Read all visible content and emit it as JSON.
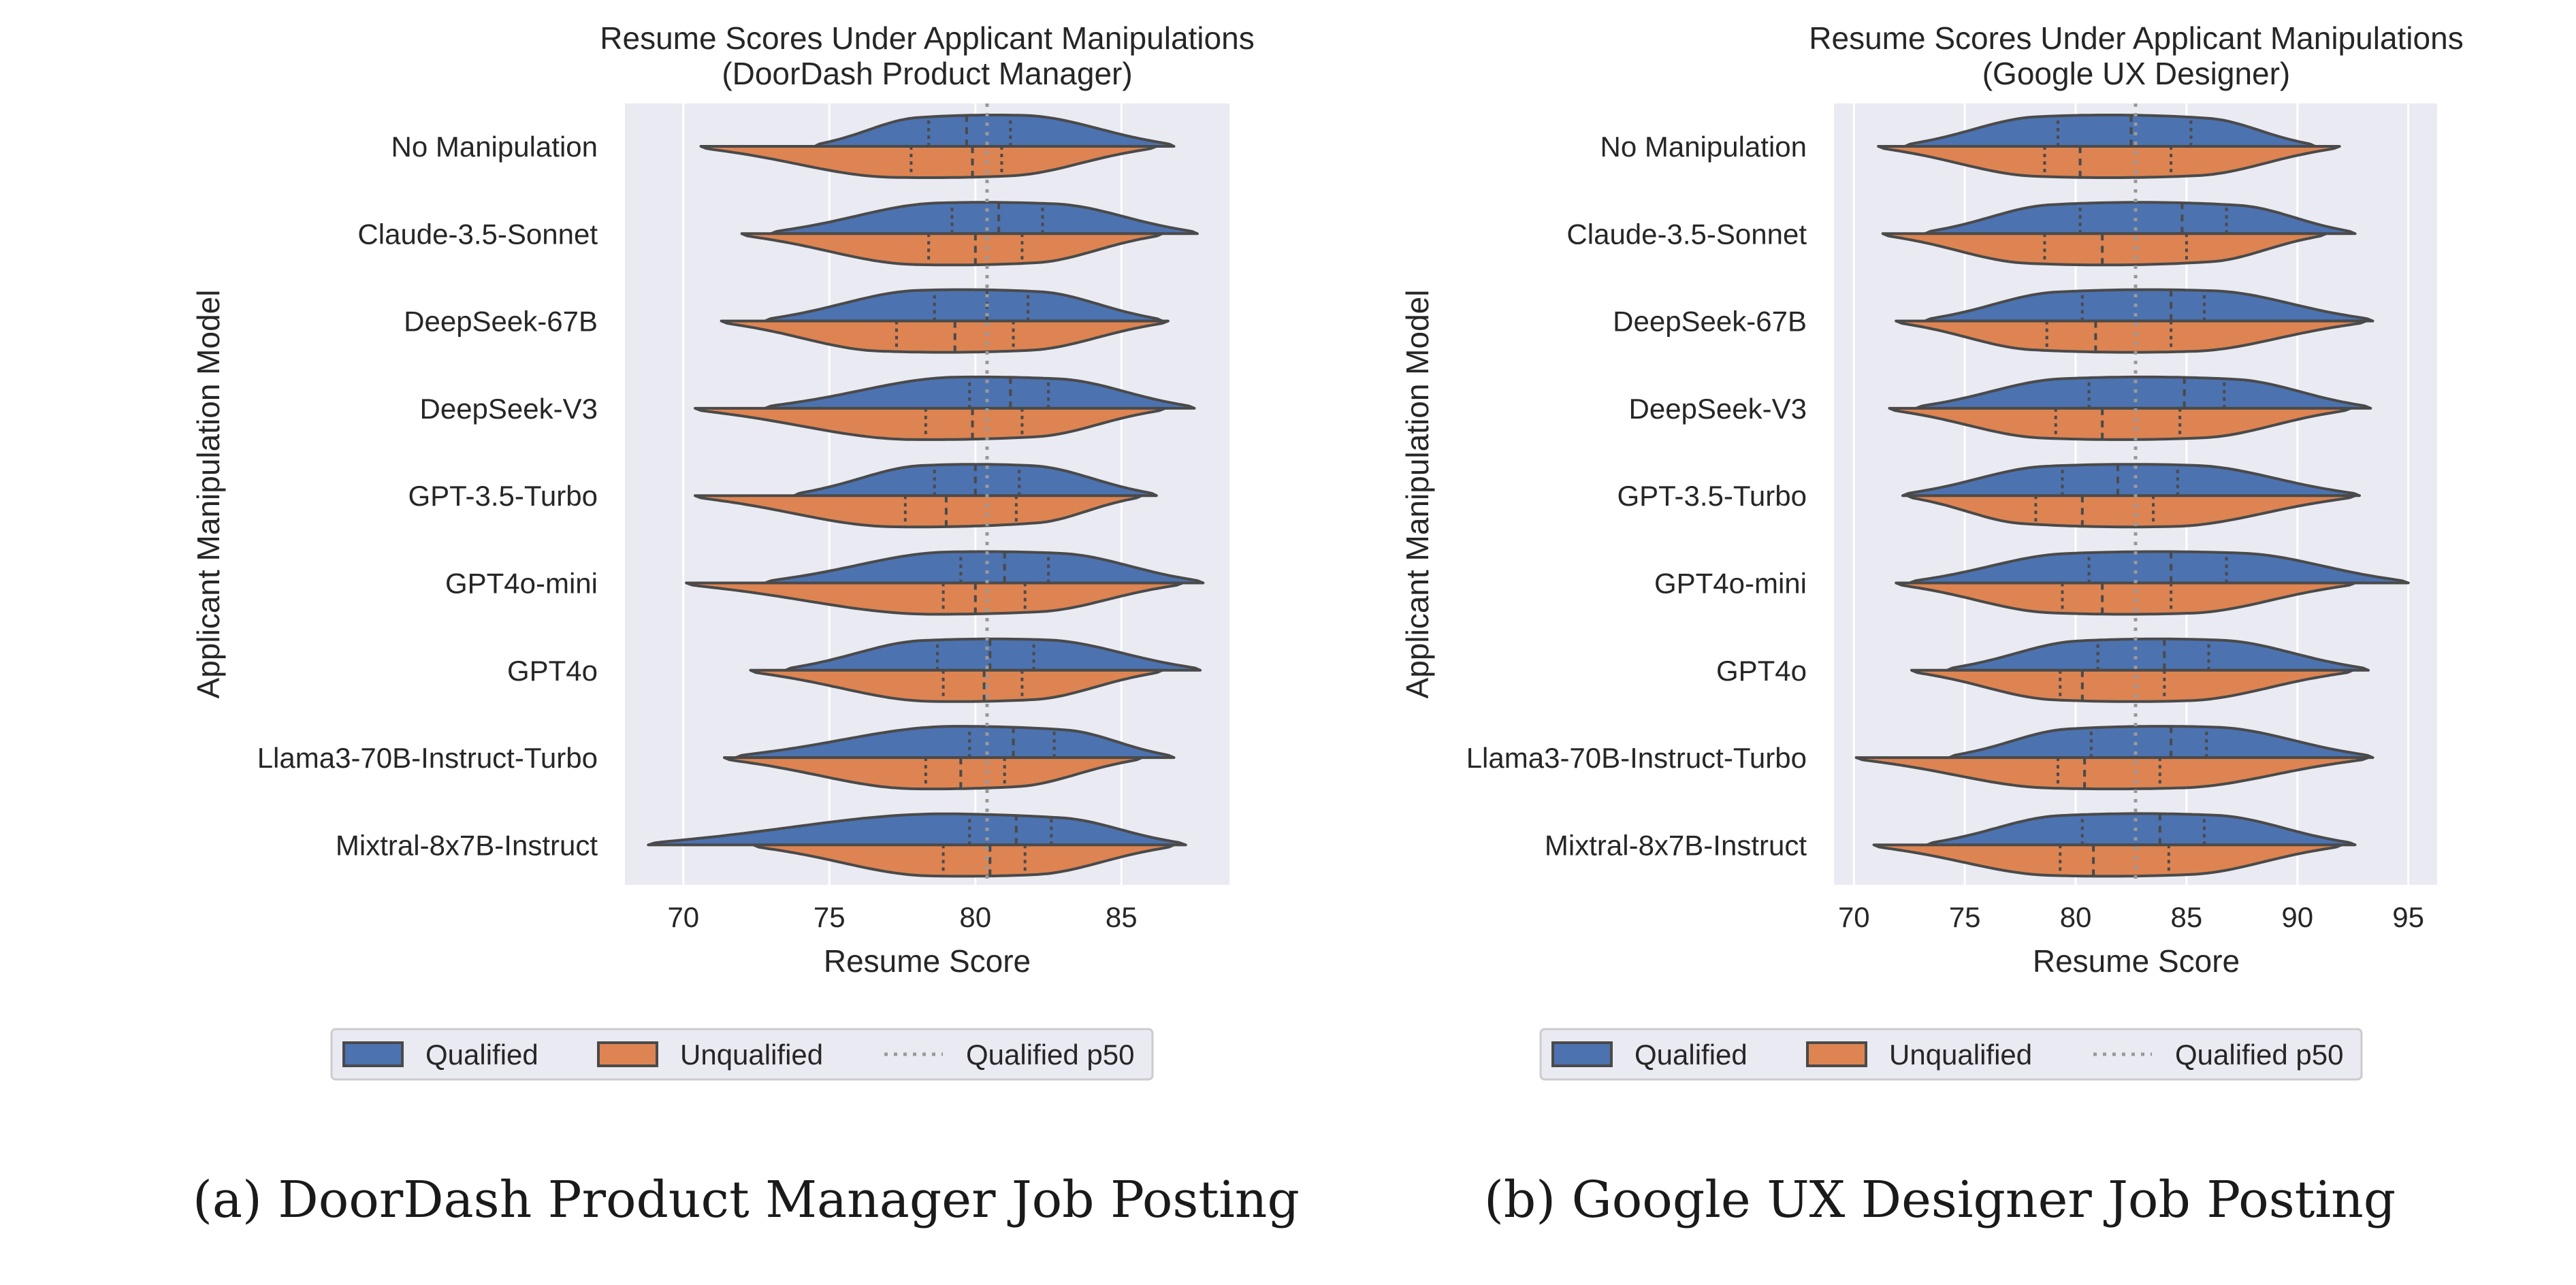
{
  "chart_data": [
    {
      "type": "violin",
      "orientation": "horizontal-split",
      "title_line1": "Resume Scores Under Applicant Manipulations",
      "title_line2": "(DoorDash Product Manager)",
      "xlabel": "Resume Score",
      "ylabel": "Applicant Manipulation Model",
      "xlim": [
        68,
        88.7
      ],
      "xticks": [
        70,
        75,
        80,
        85
      ],
      "tick_labels": [
        "70",
        "75",
        "80",
        "85"
      ],
      "reference_line": 80.4,
      "categories": [
        "No Manipulation",
        "Claude-3.5-Sonnet",
        "DeepSeek-67B",
        "DeepSeek-V3",
        "GPT-3.5-Turbo",
        "GPT4o-mini",
        "GPT4o",
        "Llama3-70B-Instruct-Turbo",
        "Mixtral-8x7B-Instruct"
      ],
      "series": [
        {
          "name": "Qualified",
          "color": "#4c72b0",
          "violins": [
            {
              "min": 74.5,
              "max": 86.8,
              "q1": 78.4,
              "median": 79.7,
              "q3": 81.2
            },
            {
              "min": 73.0,
              "max": 87.6,
              "q1": 79.2,
              "median": 80.8,
              "q3": 82.3
            },
            {
              "min": 72.8,
              "max": 86.4,
              "q1": 78.6,
              "median": 80.4,
              "q3": 81.8
            },
            {
              "min": 72.8,
              "max": 87.5,
              "q1": 79.8,
              "median": 81.2,
              "q3": 82.5
            },
            {
              "min": 73.8,
              "max": 86.2,
              "q1": 78.6,
              "median": 80.0,
              "q3": 81.5
            },
            {
              "min": 72.8,
              "max": 87.8,
              "q1": 79.5,
              "median": 81.0,
              "q3": 82.5
            },
            {
              "min": 73.5,
              "max": 87.7,
              "q1": 78.7,
              "median": 80.5,
              "q3": 82.0
            },
            {
              "min": 71.8,
              "max": 86.8,
              "q1": 79.8,
              "median": 81.3,
              "q3": 82.7
            },
            {
              "min": 68.8,
              "max": 87.2,
              "q1": 79.8,
              "median": 81.4,
              "q3": 82.6
            }
          ]
        },
        {
          "name": "Unqualified",
          "color": "#dd8452",
          "violins": [
            {
              "min": 70.6,
              "max": 86.2,
              "q1": 77.8,
              "median": 79.9,
              "q3": 80.9
            },
            {
              "min": 72.0,
              "max": 86.4,
              "q1": 78.4,
              "median": 80.0,
              "q3": 81.6
            },
            {
              "min": 71.3,
              "max": 86.6,
              "q1": 77.3,
              "median": 79.3,
              "q3": 81.3
            },
            {
              "min": 70.4,
              "max": 86.5,
              "q1": 78.3,
              "median": 79.9,
              "q3": 81.6
            },
            {
              "min": 70.4,
              "max": 85.7,
              "q1": 77.6,
              "median": 79.0,
              "q3": 81.4
            },
            {
              "min": 70.1,
              "max": 87.1,
              "q1": 78.9,
              "median": 80.0,
              "q3": 81.7
            },
            {
              "min": 72.3,
              "max": 86.4,
              "q1": 78.9,
              "median": 80.3,
              "q3": 81.6
            },
            {
              "min": 71.4,
              "max": 85.7,
              "q1": 78.3,
              "median": 79.5,
              "q3": 81.0
            },
            {
              "min": 72.4,
              "max": 86.8,
              "q1": 78.9,
              "median": 80.5,
              "q3": 81.7
            }
          ]
        }
      ],
      "legend": {
        "position": "bottom-center",
        "entries": [
          {
            "label": "Qualified",
            "kind": "patch",
            "color": "#4c72b0"
          },
          {
            "label": "Unqualified",
            "kind": "patch",
            "color": "#dd8452"
          },
          {
            "label": "Qualified p50",
            "kind": "dotted-line",
            "color": "#999999"
          }
        ]
      },
      "grid": true
    },
    {
      "type": "violin",
      "orientation": "horizontal-split",
      "title_line1": "Resume Scores Under Applicant Manipulations",
      "title_line2": "(Google UX Designer)",
      "xlabel": "Resume Score",
      "ylabel": "Applicant Manipulation Model",
      "xlim": [
        69.1,
        96.3
      ],
      "xticks": [
        70,
        75,
        80,
        85,
        90,
        95
      ],
      "tick_labels": [
        "70",
        "75",
        "80",
        "85",
        "90",
        "95"
      ],
      "reference_line": 82.7,
      "categories": [
        "No Manipulation",
        "Claude-3.5-Sonnet",
        "DeepSeek-67B",
        "DeepSeek-V3",
        "GPT-3.5-Turbo",
        "GPT4o-mini",
        "GPT4o",
        "Llama3-70B-Instruct-Turbo",
        "Mixtral-8x7B-Instruct"
      ],
      "series": [
        {
          "name": "Qualified",
          "color": "#4c72b0",
          "violins": [
            {
              "min": 72.3,
              "max": 90.8,
              "q1": 79.2,
              "median": 82.5,
              "q3": 85.2
            },
            {
              "min": 73.2,
              "max": 92.6,
              "q1": 80.2,
              "median": 84.8,
              "q3": 86.8
            },
            {
              "min": 73.2,
              "max": 93.4,
              "q1": 80.3,
              "median": 84.3,
              "q3": 85.8
            },
            {
              "min": 72.8,
              "max": 93.3,
              "q1": 80.6,
              "median": 84.9,
              "q3": 86.7
            },
            {
              "min": 72.2,
              "max": 92.8,
              "q1": 79.4,
              "median": 81.9,
              "q3": 84.6
            },
            {
              "min": 72.5,
              "max": 95.0,
              "q1": 80.6,
              "median": 84.3,
              "q3": 86.8
            },
            {
              "min": 74.2,
              "max": 93.2,
              "q1": 81.0,
              "median": 84.0,
              "q3": 86.0
            },
            {
              "min": 74.3,
              "max": 93.4,
              "q1": 80.7,
              "median": 84.3,
              "q3": 85.9
            },
            {
              "min": 73.3,
              "max": 92.6,
              "q1": 80.3,
              "median": 83.8,
              "q3": 85.8
            }
          ]
        },
        {
          "name": "Unqualified",
          "color": "#dd8452",
          "violins": [
            {
              "min": 71.1,
              "max": 91.9,
              "q1": 78.6,
              "median": 80.2,
              "q3": 84.3
            },
            {
              "min": 71.3,
              "max": 91.3,
              "q1": 78.6,
              "median": 81.2,
              "q3": 85.0
            },
            {
              "min": 71.9,
              "max": 93.1,
              "q1": 78.7,
              "median": 80.9,
              "q3": 84.3
            },
            {
              "min": 71.6,
              "max": 92.4,
              "q1": 79.1,
              "median": 81.2,
              "q3": 84.7
            },
            {
              "min": 72.4,
              "max": 92.6,
              "q1": 78.2,
              "median": 80.3,
              "q3": 83.5
            },
            {
              "min": 71.9,
              "max": 92.6,
              "q1": 79.4,
              "median": 81.2,
              "q3": 84.3
            },
            {
              "min": 72.6,
              "max": 92.5,
              "q1": 79.3,
              "median": 80.3,
              "q3": 84.0
            },
            {
              "min": 70.1,
              "max": 93.2,
              "q1": 79.2,
              "median": 80.4,
              "q3": 83.8
            },
            {
              "min": 70.9,
              "max": 92.0,
              "q1": 79.3,
              "median": 80.8,
              "q3": 84.2
            }
          ]
        }
      ],
      "legend": {
        "position": "bottom-center",
        "entries": [
          {
            "label": "Qualified",
            "kind": "patch",
            "color": "#4c72b0"
          },
          {
            "label": "Unqualified",
            "kind": "patch",
            "color": "#dd8452"
          },
          {
            "label": "Qualified p50",
            "kind": "dotted-line",
            "color": "#999999"
          }
        ]
      },
      "grid": true
    }
  ],
  "captions": {
    "a": "(a) DoorDash Product Manager Job Posting",
    "b": "(b) Google UX Designer Job Posting"
  },
  "colors": {
    "axes_background": "#eaeaf2",
    "grid": "#ffffff",
    "outline": "#4a4a4a",
    "median_line": "#999999"
  }
}
